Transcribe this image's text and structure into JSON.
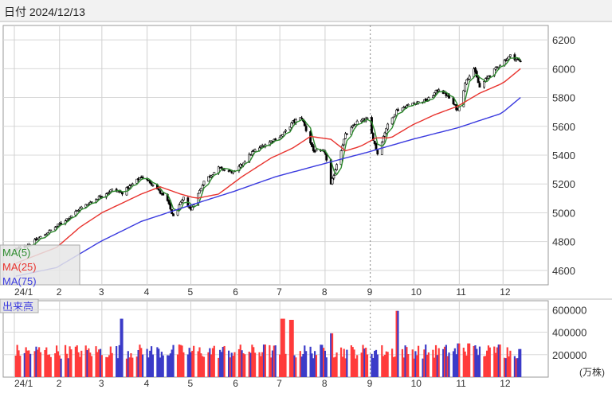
{
  "header": {
    "date_label": "日付 2024/12/13"
  },
  "chart_data": [
    {
      "type": "candlestick",
      "title": "",
      "months": [
        "24/1",
        "2",
        "3",
        "4",
        "5",
        "6",
        "7",
        "8",
        "9",
        "10",
        "11",
        "12"
      ],
      "y_ticks": [
        "6200",
        "6000",
        "5800",
        "5600",
        "5400",
        "5200",
        "5000",
        "4800",
        "4600"
      ],
      "ylim": [
        4500,
        6300
      ],
      "grid": true,
      "legend_position": "bottom-left",
      "series": [
        {
          "name": "MA(5)",
          "color": "#2e8b2e"
        },
        {
          "name": "MA(25)",
          "color": "#e8332e"
        },
        {
          "name": "MA(75)",
          "color": "#3a3adf"
        }
      ],
      "close_anchors": [
        [
          "2024-01-02",
          4745
        ],
        [
          "2024-01-12",
          4785
        ],
        [
          "2024-01-22",
          4850
        ],
        [
          "2024-02-05",
          4950
        ],
        [
          "2024-02-15",
          5030
        ],
        [
          "2024-03-01",
          5120
        ],
        [
          "2024-03-08",
          5160
        ],
        [
          "2024-03-15",
          5140
        ],
        [
          "2024-03-28",
          5250
        ],
        [
          "2024-04-05",
          5200
        ],
        [
          "2024-04-15",
          5080
        ],
        [
          "2024-04-19",
          4970
        ],
        [
          "2024-04-26",
          5100
        ],
        [
          "2024-05-01",
          5020
        ],
        [
          "2024-05-10",
          5220
        ],
        [
          "2024-05-20",
          5310
        ],
        [
          "2024-05-31",
          5280
        ],
        [
          "2024-06-12",
          5420
        ],
        [
          "2024-06-20",
          5470
        ],
        [
          "2024-07-03",
          5540
        ],
        [
          "2024-07-10",
          5630
        ],
        [
          "2024-07-16",
          5660
        ],
        [
          "2024-07-24",
          5430
        ],
        [
          "2024-08-01",
          5420
        ],
        [
          "2024-08-05",
          5190
        ],
        [
          "2024-08-09",
          5340
        ],
        [
          "2024-08-15",
          5540
        ],
        [
          "2024-08-23",
          5630
        ],
        [
          "2024-08-30",
          5650
        ],
        [
          "2024-09-06",
          5410
        ],
        [
          "2024-09-12",
          5590
        ],
        [
          "2024-09-19",
          5710
        ],
        [
          "2024-09-30",
          5760
        ],
        [
          "2024-10-10",
          5780
        ],
        [
          "2024-10-18",
          5860
        ],
        [
          "2024-10-24",
          5810
        ],
        [
          "2024-10-31",
          5710
        ],
        [
          "2024-11-06",
          5930
        ],
        [
          "2024-11-11",
          6000
        ],
        [
          "2024-11-15",
          5870
        ],
        [
          "2024-11-21",
          5950
        ],
        [
          "2024-11-29",
          6030
        ],
        [
          "2024-12-06",
          6090
        ],
        [
          "2024-12-13",
          6050
        ]
      ],
      "ma25_anchors": [
        [
          "2024-01-02",
          4650
        ],
        [
          "2024-01-30",
          4760
        ],
        [
          "2024-02-15",
          4900
        ],
        [
          "2024-03-01",
          5000
        ],
        [
          "2024-03-28",
          5130
        ],
        [
          "2024-04-10",
          5180
        ],
        [
          "2024-04-24",
          5130
        ],
        [
          "2024-05-05",
          5100
        ],
        [
          "2024-05-20",
          5130
        ],
        [
          "2024-06-05",
          5250
        ],
        [
          "2024-06-25",
          5380
        ],
        [
          "2024-07-10",
          5450
        ],
        [
          "2024-07-22",
          5530
        ],
        [
          "2024-08-05",
          5510
        ],
        [
          "2024-08-15",
          5430
        ],
        [
          "2024-08-25",
          5460
        ],
        [
          "2024-09-05",
          5520
        ],
        [
          "2024-09-15",
          5520
        ],
        [
          "2024-09-30",
          5610
        ],
        [
          "2024-10-15",
          5680
        ],
        [
          "2024-10-31",
          5740
        ],
        [
          "2024-11-15",
          5830
        ],
        [
          "2024-12-01",
          5900
        ],
        [
          "2024-12-13",
          6000
        ]
      ],
      "ma75_anchors": [
        [
          "2024-01-02",
          4560
        ],
        [
          "2024-01-30",
          4620
        ],
        [
          "2024-02-29",
          4800
        ],
        [
          "2024-03-28",
          4940
        ],
        [
          "2024-04-30",
          5050
        ],
        [
          "2024-05-31",
          5150
        ],
        [
          "2024-06-28",
          5250
        ],
        [
          "2024-07-31",
          5340
        ],
        [
          "2024-08-30",
          5420
        ],
        [
          "2024-09-30",
          5510
        ],
        [
          "2024-10-31",
          5590
        ],
        [
          "2024-11-30",
          5690
        ],
        [
          "2024-12-13",
          5800
        ]
      ]
    },
    {
      "type": "bar",
      "title": "出来高",
      "y_ticks": [
        "600000",
        "400000",
        "200000"
      ],
      "ylim": [
        0,
        680000
      ],
      "unit": "(万株)",
      "up_color": "#ff3b3b",
      "down_color": "#3b3bc8",
      "typical_volume": 235000,
      "spikes": [
        [
          "2024-03-15",
          520000
        ],
        [
          "2024-06-21",
          290000
        ],
        [
          "2024-07-03",
          520000
        ],
        [
          "2024-07-09",
          510000
        ],
        [
          "2024-08-05",
          390000
        ],
        [
          "2024-09-20",
          590000
        ],
        [
          "2024-11-01",
          300000
        ],
        [
          "2024-11-08",
          300000
        ],
        [
          "2024-11-29",
          290000
        ],
        [
          "2024-12-13",
          250000
        ]
      ]
    }
  ]
}
